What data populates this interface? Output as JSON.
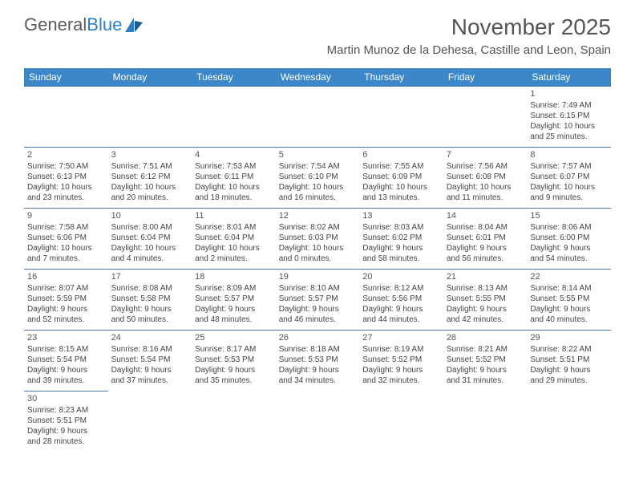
{
  "logo": {
    "part1": "General",
    "part2": "Blue"
  },
  "title": "November 2025",
  "location": "Martin Munoz de la Dehesa, Castille and Leon, Spain",
  "header_bg": "#3b87c8",
  "header_text": "#ffffff",
  "border_color": "#4a79a8",
  "cell_font_size": 10,
  "daynum_font_size": 11,
  "title_font_size": 28,
  "location_font_size": 15,
  "day_names": [
    "Sunday",
    "Monday",
    "Tuesday",
    "Wednesday",
    "Thursday",
    "Friday",
    "Saturday"
  ],
  "weeks": [
    [
      null,
      null,
      null,
      null,
      null,
      null,
      {
        "n": "1",
        "sr": "Sunrise: 7:49 AM",
        "ss": "Sunset: 6:15 PM",
        "d1": "Daylight: 10 hours",
        "d2": "and 25 minutes."
      }
    ],
    [
      {
        "n": "2",
        "sr": "Sunrise: 7:50 AM",
        "ss": "Sunset: 6:13 PM",
        "d1": "Daylight: 10 hours",
        "d2": "and 23 minutes."
      },
      {
        "n": "3",
        "sr": "Sunrise: 7:51 AM",
        "ss": "Sunset: 6:12 PM",
        "d1": "Daylight: 10 hours",
        "d2": "and 20 minutes."
      },
      {
        "n": "4",
        "sr": "Sunrise: 7:53 AM",
        "ss": "Sunset: 6:11 PM",
        "d1": "Daylight: 10 hours",
        "d2": "and 18 minutes."
      },
      {
        "n": "5",
        "sr": "Sunrise: 7:54 AM",
        "ss": "Sunset: 6:10 PM",
        "d1": "Daylight: 10 hours",
        "d2": "and 16 minutes."
      },
      {
        "n": "6",
        "sr": "Sunrise: 7:55 AM",
        "ss": "Sunset: 6:09 PM",
        "d1": "Daylight: 10 hours",
        "d2": "and 13 minutes."
      },
      {
        "n": "7",
        "sr": "Sunrise: 7:56 AM",
        "ss": "Sunset: 6:08 PM",
        "d1": "Daylight: 10 hours",
        "d2": "and 11 minutes."
      },
      {
        "n": "8",
        "sr": "Sunrise: 7:57 AM",
        "ss": "Sunset: 6:07 PM",
        "d1": "Daylight: 10 hours",
        "d2": "and 9 minutes."
      }
    ],
    [
      {
        "n": "9",
        "sr": "Sunrise: 7:58 AM",
        "ss": "Sunset: 6:06 PM",
        "d1": "Daylight: 10 hours",
        "d2": "and 7 minutes."
      },
      {
        "n": "10",
        "sr": "Sunrise: 8:00 AM",
        "ss": "Sunset: 6:04 PM",
        "d1": "Daylight: 10 hours",
        "d2": "and 4 minutes."
      },
      {
        "n": "11",
        "sr": "Sunrise: 8:01 AM",
        "ss": "Sunset: 6:04 PM",
        "d1": "Daylight: 10 hours",
        "d2": "and 2 minutes."
      },
      {
        "n": "12",
        "sr": "Sunrise: 8:02 AM",
        "ss": "Sunset: 6:03 PM",
        "d1": "Daylight: 10 hours",
        "d2": "and 0 minutes."
      },
      {
        "n": "13",
        "sr": "Sunrise: 8:03 AM",
        "ss": "Sunset: 6:02 PM",
        "d1": "Daylight: 9 hours",
        "d2": "and 58 minutes."
      },
      {
        "n": "14",
        "sr": "Sunrise: 8:04 AM",
        "ss": "Sunset: 6:01 PM",
        "d1": "Daylight: 9 hours",
        "d2": "and 56 minutes."
      },
      {
        "n": "15",
        "sr": "Sunrise: 8:06 AM",
        "ss": "Sunset: 6:00 PM",
        "d1": "Daylight: 9 hours",
        "d2": "and 54 minutes."
      }
    ],
    [
      {
        "n": "16",
        "sr": "Sunrise: 8:07 AM",
        "ss": "Sunset: 5:59 PM",
        "d1": "Daylight: 9 hours",
        "d2": "and 52 minutes."
      },
      {
        "n": "17",
        "sr": "Sunrise: 8:08 AM",
        "ss": "Sunset: 5:58 PM",
        "d1": "Daylight: 9 hours",
        "d2": "and 50 minutes."
      },
      {
        "n": "18",
        "sr": "Sunrise: 8:09 AM",
        "ss": "Sunset: 5:57 PM",
        "d1": "Daylight: 9 hours",
        "d2": "and 48 minutes."
      },
      {
        "n": "19",
        "sr": "Sunrise: 8:10 AM",
        "ss": "Sunset: 5:57 PM",
        "d1": "Daylight: 9 hours",
        "d2": "and 46 minutes."
      },
      {
        "n": "20",
        "sr": "Sunrise: 8:12 AM",
        "ss": "Sunset: 5:56 PM",
        "d1": "Daylight: 9 hours",
        "d2": "and 44 minutes."
      },
      {
        "n": "21",
        "sr": "Sunrise: 8:13 AM",
        "ss": "Sunset: 5:55 PM",
        "d1": "Daylight: 9 hours",
        "d2": "and 42 minutes."
      },
      {
        "n": "22",
        "sr": "Sunrise: 8:14 AM",
        "ss": "Sunset: 5:55 PM",
        "d1": "Daylight: 9 hours",
        "d2": "and 40 minutes."
      }
    ],
    [
      {
        "n": "23",
        "sr": "Sunrise: 8:15 AM",
        "ss": "Sunset: 5:54 PM",
        "d1": "Daylight: 9 hours",
        "d2": "and 39 minutes."
      },
      {
        "n": "24",
        "sr": "Sunrise: 8:16 AM",
        "ss": "Sunset: 5:54 PM",
        "d1": "Daylight: 9 hours",
        "d2": "and 37 minutes."
      },
      {
        "n": "25",
        "sr": "Sunrise: 8:17 AM",
        "ss": "Sunset: 5:53 PM",
        "d1": "Daylight: 9 hours",
        "d2": "and 35 minutes."
      },
      {
        "n": "26",
        "sr": "Sunrise: 8:18 AM",
        "ss": "Sunset: 5:53 PM",
        "d1": "Daylight: 9 hours",
        "d2": "and 34 minutes."
      },
      {
        "n": "27",
        "sr": "Sunrise: 8:19 AM",
        "ss": "Sunset: 5:52 PM",
        "d1": "Daylight: 9 hours",
        "d2": "and 32 minutes."
      },
      {
        "n": "28",
        "sr": "Sunrise: 8:21 AM",
        "ss": "Sunset: 5:52 PM",
        "d1": "Daylight: 9 hours",
        "d2": "and 31 minutes."
      },
      {
        "n": "29",
        "sr": "Sunrise: 8:22 AM",
        "ss": "Sunset: 5:51 PM",
        "d1": "Daylight: 9 hours",
        "d2": "and 29 minutes."
      }
    ],
    [
      {
        "n": "30",
        "sr": "Sunrise: 8:23 AM",
        "ss": "Sunset: 5:51 PM",
        "d1": "Daylight: 9 hours",
        "d2": "and 28 minutes."
      },
      null,
      null,
      null,
      null,
      null,
      null
    ]
  ]
}
